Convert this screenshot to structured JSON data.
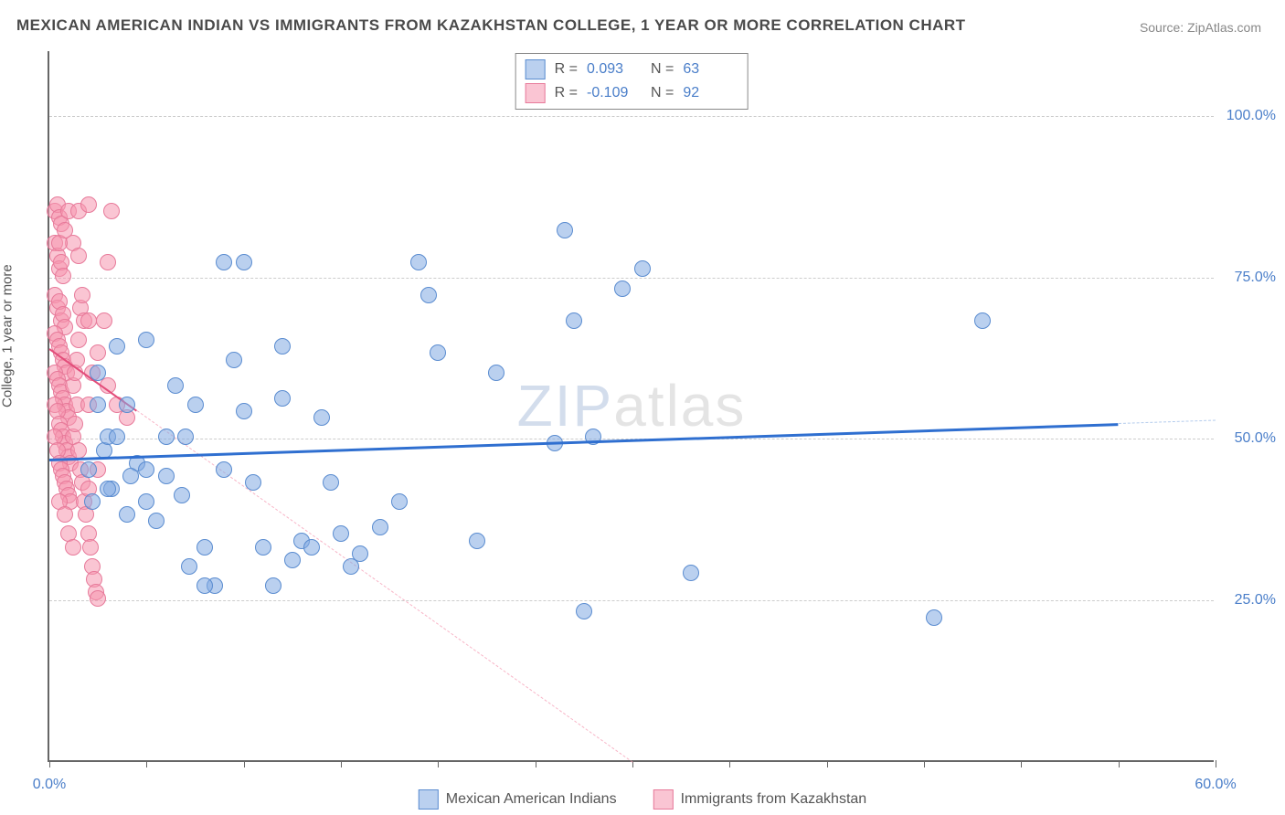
{
  "title": "MEXICAN AMERICAN INDIAN VS IMMIGRANTS FROM KAZAKHSTAN COLLEGE, 1 YEAR OR MORE CORRELATION CHART",
  "source": "Source: ZipAtlas.com",
  "ylabel": "College, 1 year or more",
  "watermark": {
    "z": "ZIP",
    "rest": "atlas"
  },
  "chart": {
    "type": "scatter",
    "background_color": "#ffffff",
    "grid_color": "#cccccc",
    "axis_color": "#666666",
    "label_color": "#4a7ec9",
    "label_fontsize": 16,
    "title_fontsize": 17,
    "title_color": "#4a4a4a",
    "marker_size": 18,
    "xlim": [
      0,
      60
    ],
    "ylim": [
      0,
      110
    ],
    "y_gridlines": [
      25,
      50,
      75,
      100
    ],
    "y_tick_labels": [
      "25.0%",
      "50.0%",
      "75.0%",
      "100.0%"
    ],
    "x_ticks": [
      0,
      5,
      10,
      15,
      20,
      25,
      30,
      35,
      40,
      45,
      50,
      55,
      60
    ],
    "x_tick_labels": {
      "0": "0.0%",
      "60": "60.0%"
    }
  },
  "series": [
    {
      "name": "Mexican American Indians",
      "fill": "rgba(130,170,225,0.55)",
      "stroke": "#5a8cd0",
      "trend_color": "#2f6fd0",
      "trend_width": 3,
      "trend_dash_color": "rgba(130,170,225,0.6)",
      "R": "0.093",
      "N": "63",
      "trend": {
        "x1": 0,
        "y1": 47,
        "x2": 60,
        "y2": 53
      },
      "trend_solid_x_end": 55,
      "points": [
        [
          2.0,
          45
        ],
        [
          2.5,
          60
        ],
        [
          2.8,
          48
        ],
        [
          2.2,
          40
        ],
        [
          2.5,
          55
        ],
        [
          3.0,
          50
        ],
        [
          3.5,
          64
        ],
        [
          3.2,
          42
        ],
        [
          4.0,
          55
        ],
        [
          4.5,
          46
        ],
        [
          4.2,
          44
        ],
        [
          5.0,
          65
        ],
        [
          5.5,
          37
        ],
        [
          5.0,
          45
        ],
        [
          6.0,
          44
        ],
        [
          6.5,
          58
        ],
        [
          6.8,
          41
        ],
        [
          7.0,
          50
        ],
        [
          7.5,
          55
        ],
        [
          7.2,
          30
        ],
        [
          8.0,
          33
        ],
        [
          8.5,
          27
        ],
        [
          9.0,
          77
        ],
        [
          9.5,
          62
        ],
        [
          10.0,
          77
        ],
        [
          10.5,
          43
        ],
        [
          10.0,
          54
        ],
        [
          11.0,
          33
        ],
        [
          11.5,
          27
        ],
        [
          12.0,
          56
        ],
        [
          13.0,
          34
        ],
        [
          13.5,
          33
        ],
        [
          14.0,
          53
        ],
        [
          14.5,
          43
        ],
        [
          15.0,
          35
        ],
        [
          15.5,
          30
        ],
        [
          16.0,
          32
        ],
        [
          17.0,
          36
        ],
        [
          19.0,
          77
        ],
        [
          19.5,
          72
        ],
        [
          20.0,
          63
        ],
        [
          22.0,
          34
        ],
        [
          23.0,
          60
        ],
        [
          26.0,
          49
        ],
        [
          26.5,
          82
        ],
        [
          27.0,
          68
        ],
        [
          27.5,
          23
        ],
        [
          28.0,
          50
        ],
        [
          29.5,
          73
        ],
        [
          30.5,
          76
        ],
        [
          33.0,
          29
        ],
        [
          45.5,
          22
        ],
        [
          48.0,
          68
        ],
        [
          3.5,
          50
        ],
        [
          4.0,
          38
        ],
        [
          8.0,
          27
        ],
        [
          12.5,
          31
        ],
        [
          6.0,
          50
        ],
        [
          5.0,
          40
        ],
        [
          9.0,
          45
        ],
        [
          18.0,
          40
        ],
        [
          12.0,
          64
        ],
        [
          3.0,
          42
        ]
      ]
    },
    {
      "name": "Immigrants from Kazakhstan",
      "fill": "rgba(245,150,175,0.55)",
      "stroke": "#e77a9a",
      "trend_color": "#e34d7a",
      "trend_width": 2,
      "trend_dash_color": "rgba(245,150,175,0.7)",
      "R": "-0.109",
      "N": "92",
      "trend": {
        "x1": 0,
        "y1": 64,
        "x2": 30,
        "y2": 0
      },
      "trend_solid_x_end": 4.5,
      "points": [
        [
          0.3,
          85
        ],
        [
          0.4,
          86
        ],
        [
          0.5,
          84
        ],
        [
          0.6,
          83
        ],
        [
          0.3,
          80
        ],
        [
          0.4,
          78
        ],
        [
          0.5,
          76
        ],
        [
          0.6,
          77
        ],
        [
          0.7,
          75
        ],
        [
          0.3,
          72
        ],
        [
          0.4,
          70
        ],
        [
          0.5,
          71
        ],
        [
          0.6,
          68
        ],
        [
          0.7,
          69
        ],
        [
          0.8,
          67
        ],
        [
          0.3,
          66
        ],
        [
          0.4,
          65
        ],
        [
          0.5,
          64
        ],
        [
          0.6,
          63
        ],
        [
          0.7,
          62
        ],
        [
          0.8,
          61
        ],
        [
          0.9,
          60
        ],
        [
          0.3,
          60
        ],
        [
          0.4,
          59
        ],
        [
          0.5,
          58
        ],
        [
          0.6,
          57
        ],
        [
          0.7,
          56
        ],
        [
          0.8,
          55
        ],
        [
          0.9,
          54
        ],
        [
          1.0,
          53
        ],
        [
          0.3,
          55
        ],
        [
          0.4,
          54
        ],
        [
          0.5,
          52
        ],
        [
          0.6,
          51
        ],
        [
          0.7,
          50
        ],
        [
          0.8,
          49
        ],
        [
          0.9,
          48
        ],
        [
          1.0,
          47
        ],
        [
          1.1,
          46
        ],
        [
          0.3,
          50
        ],
        [
          0.4,
          48
        ],
        [
          0.5,
          46
        ],
        [
          0.6,
          45
        ],
        [
          0.7,
          44
        ],
        [
          0.8,
          43
        ],
        [
          0.9,
          42
        ],
        [
          1.0,
          41
        ],
        [
          1.1,
          40
        ],
        [
          1.2,
          58
        ],
        [
          1.3,
          60
        ],
        [
          1.4,
          62
        ],
        [
          1.5,
          65
        ],
        [
          1.6,
          70
        ],
        [
          1.7,
          72
        ],
        [
          1.8,
          68
        ],
        [
          1.2,
          50
        ],
        [
          1.3,
          52
        ],
        [
          1.4,
          55
        ],
        [
          1.5,
          48
        ],
        [
          1.6,
          45
        ],
        [
          1.7,
          43
        ],
        [
          1.8,
          40
        ],
        [
          1.9,
          38
        ],
        [
          2.0,
          35
        ],
        [
          2.1,
          33
        ],
        [
          2.2,
          30
        ],
        [
          2.3,
          28
        ],
        [
          2.4,
          26
        ],
        [
          2.5,
          25
        ],
        [
          2.0,
          55
        ],
        [
          2.2,
          60
        ],
        [
          2.5,
          63
        ],
        [
          2.8,
          68
        ],
        [
          3.0,
          77
        ],
        [
          3.2,
          85
        ],
        [
          1.0,
          85
        ],
        [
          1.2,
          80
        ],
        [
          1.5,
          78
        ],
        [
          2.0,
          42
        ],
        [
          2.0,
          68
        ],
        [
          2.5,
          45
        ],
        [
          3.0,
          58
        ],
        [
          3.5,
          55
        ],
        [
          4.0,
          53
        ],
        [
          0.5,
          40
        ],
        [
          0.8,
          38
        ],
        [
          1.0,
          35
        ],
        [
          1.2,
          33
        ],
        [
          0.5,
          80
        ],
        [
          0.8,
          82
        ],
        [
          1.5,
          85
        ],
        [
          2.0,
          86
        ]
      ]
    }
  ],
  "legend": {
    "bottom": [
      "Mexican American Indians",
      "Immigrants from Kazakhstan"
    ]
  }
}
